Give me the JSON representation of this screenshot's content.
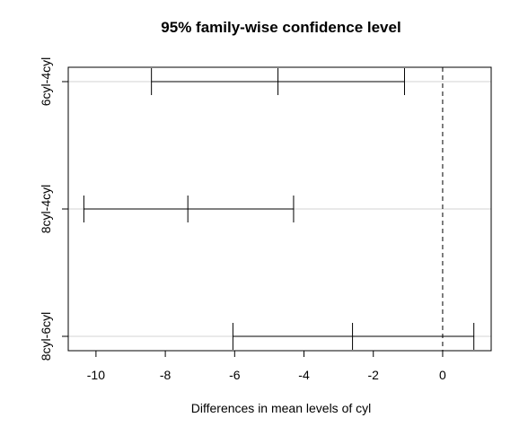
{
  "chart_data": {
    "type": "interval",
    "title": "95% family-wise confidence level",
    "xlabel": "Differences in mean levels of cyl",
    "ylabel": "",
    "xlim": [
      -10.8,
      1.4
    ],
    "xticks": [
      -10,
      -8,
      -6,
      -4,
      -2,
      0
    ],
    "reference_line": 0,
    "grid": "horizontal lines at each comparison",
    "comparisons": [
      {
        "label": "6cyl-4cyl",
        "lower": -8.4,
        "estimate": -4.75,
        "upper": -1.1
      },
      {
        "label": "8cyl-4cyl",
        "lower": -10.35,
        "estimate": -7.35,
        "upper": -4.3
      },
      {
        "label": "8cyl-6cyl",
        "lower": -6.05,
        "estimate": -2.6,
        "upper": 0.9
      }
    ]
  }
}
